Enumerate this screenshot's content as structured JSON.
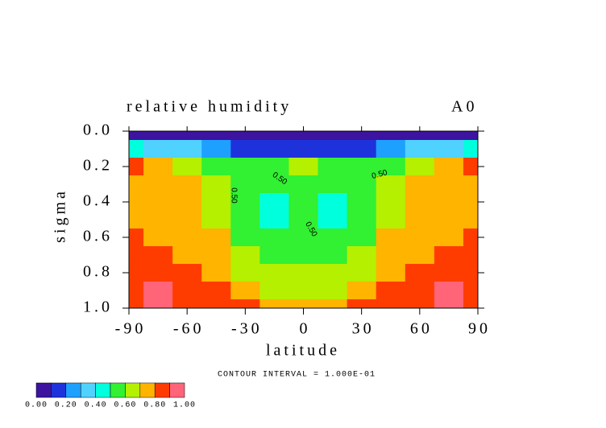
{
  "chart_data": {
    "type": "contour",
    "title": "relative humidity",
    "subtitle": "A0",
    "xlabel": "latitude",
    "ylabel": "sigma",
    "note": "CONTOUR INTERVAL = 1.000E-01",
    "xlim": [
      -90,
      90
    ],
    "xticks": [
      -90,
      -60,
      -30,
      0,
      30,
      60,
      90
    ],
    "ylim": [
      1.0,
      0.0
    ],
    "yticks": [
      {
        "value": 0,
        "label": "0.0"
      },
      0.2,
      0.4,
      0.6,
      0.8,
      {
        "value": 1,
        "label": "1.0"
      }
    ],
    "x": [
      -90,
      -75,
      -60,
      -45,
      -30,
      -15,
      0,
      15,
      30,
      45,
      60,
      75,
      90
    ],
    "y": [
      0,
      0.1,
      0.2,
      0.3,
      0.4,
      0.5,
      0.6,
      0.7,
      0.8,
      0.9,
      1.0
    ],
    "z": [
      [
        0.05,
        0.05,
        0.05,
        0.05,
        0.05,
        0.05,
        0.05,
        0.05,
        0.05,
        0.05,
        0.05,
        0.05,
        0.05
      ],
      [
        0.45,
        0.35,
        0.3,
        0.25,
        0.15,
        0.12,
        0.12,
        0.12,
        0.15,
        0.25,
        0.3,
        0.35,
        0.45
      ],
      [
        0.82,
        0.7,
        0.65,
        0.55,
        0.55,
        0.55,
        0.65,
        0.55,
        0.55,
        0.55,
        0.65,
        0.7,
        0.82
      ],
      [
        0.75,
        0.75,
        0.7,
        0.65,
        0.55,
        0.55,
        0.55,
        0.55,
        0.55,
        0.65,
        0.7,
        0.75,
        0.75
      ],
      [
        0.75,
        0.75,
        0.75,
        0.65,
        0.55,
        0.45,
        0.55,
        0.45,
        0.55,
        0.65,
        0.75,
        0.75,
        0.75
      ],
      [
        0.75,
        0.75,
        0.75,
        0.68,
        0.55,
        0.45,
        0.55,
        0.45,
        0.55,
        0.68,
        0.75,
        0.75,
        0.75
      ],
      [
        0.85,
        0.75,
        0.75,
        0.7,
        0.58,
        0.5,
        0.55,
        0.5,
        0.58,
        0.7,
        0.75,
        0.75,
        0.85
      ],
      [
        0.85,
        0.85,
        0.75,
        0.72,
        0.62,
        0.55,
        0.55,
        0.55,
        0.62,
        0.72,
        0.75,
        0.85,
        0.85
      ],
      [
        0.85,
        0.85,
        0.82,
        0.75,
        0.68,
        0.6,
        0.65,
        0.6,
        0.68,
        0.75,
        0.82,
        0.85,
        0.85
      ],
      [
        0.85,
        0.92,
        0.85,
        0.82,
        0.75,
        0.68,
        0.65,
        0.68,
        0.75,
        0.82,
        0.85,
        0.92,
        0.85
      ],
      [
        0.85,
        0.92,
        0.85,
        0.85,
        0.82,
        0.75,
        0.72,
        0.75,
        0.82,
        0.85,
        0.85,
        0.92,
        0.85
      ]
    ],
    "levels": [
      0,
      0.1,
      0.2,
      0.3,
      0.4,
      0.5,
      0.6,
      0.7,
      0.8,
      0.9,
      1.0
    ],
    "colors": [
      "#3c14a0",
      "#1e32dc",
      "#1ea0ff",
      "#50d2ff",
      "#00ffdc",
      "#32f032",
      "#b4f000",
      "#ffb400",
      "#ff3c00",
      "#ff6478"
    ],
    "colorbar_ticks": [
      {
        "value": 0,
        "label": "0.00"
      },
      {
        "value": 0.2,
        "label": "0.20"
      },
      {
        "value": 0.4,
        "label": "0.40"
      },
      {
        "value": 0.6,
        "label": "0.60"
      },
      {
        "value": 0.8,
        "label": "0.80"
      },
      {
        "value": 1,
        "label": "1.00"
      }
    ],
    "contour_labels": [
      {
        "value": 0.5,
        "label": "0.50"
      },
      {
        "value": 0.5,
        "label": "0.50"
      },
      {
        "value": 0.5,
        "label": "0.50"
      },
      {
        "value": 0.5,
        "label": "0.50"
      }
    ]
  }
}
